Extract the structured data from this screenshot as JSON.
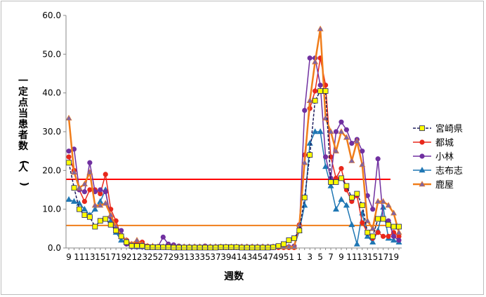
{
  "chart_data": {
    "type": "line",
    "xlabel": "週数",
    "ylabel": "一定点当患者数(人)",
    "ylim": [
      0,
      60
    ],
    "yticks": [
      "0.0",
      "10.0",
      "20.0",
      "30.0",
      "40.0",
      "50.0",
      "60.0"
    ],
    "x": [
      "9",
      "10",
      "11",
      "12",
      "13",
      "14",
      "15",
      "16",
      "17",
      "18",
      "19",
      "20",
      "21",
      "22",
      "23",
      "24",
      "25",
      "26",
      "27",
      "28",
      "29",
      "30",
      "31",
      "32",
      "33",
      "34",
      "35",
      "36",
      "37",
      "38",
      "39",
      "40",
      "41",
      "42",
      "43",
      "44",
      "45",
      "46",
      "47",
      "48",
      "49",
      "50",
      "51",
      "52",
      "1",
      "2",
      "3",
      "4",
      "5",
      "6",
      "7",
      "8",
      "9",
      "10",
      "11",
      "12",
      "13",
      "14",
      "15",
      "16",
      "17",
      "18",
      "19",
      "20"
    ],
    "x_tick_labels": [
      "9",
      "11",
      "13",
      "15",
      "17",
      "19",
      "21",
      "23",
      "25",
      "27",
      "29",
      "31",
      "33",
      "35",
      "37",
      "39",
      "41",
      "43",
      "45",
      "47",
      "49",
      "51",
      "1",
      "3",
      "5",
      "7",
      "9",
      "11",
      "13",
      "15",
      "17",
      "19"
    ],
    "series": [
      {
        "name": "宮崎県",
        "color": "#1f1f5f",
        "marker_fill": "#ffff00",
        "marker": "square",
        "dashed": true,
        "values": [
          22,
          15.5,
          10,
          8.5,
          8,
          5.5,
          7,
          7.5,
          6,
          4.5,
          3,
          1.5,
          0.5,
          0.5,
          0.5,
          0.2,
          0.2,
          0.2,
          0.2,
          0.2,
          0.1,
          0.1,
          0.1,
          0.1,
          0.1,
          0.1,
          0.1,
          0.1,
          0.1,
          0.2,
          0.2,
          0.2,
          0.2,
          0.1,
          0.1,
          0.1,
          0.1,
          0.1,
          0.1,
          0.2,
          0.5,
          1,
          2,
          2.5,
          4.5,
          13,
          24,
          38,
          40.5,
          40.5,
          17,
          17,
          18,
          16,
          13,
          14,
          11,
          4,
          3,
          7.5,
          7.5,
          6,
          5.5,
          5.5
        ]
      },
      {
        "name": "都城",
        "color": "#e8281c",
        "marker_fill": "#e8281c",
        "marker": "circle",
        "dashed": false,
        "values": [
          23.5,
          20,
          15,
          12,
          15,
          15,
          14,
          19,
          10,
          7,
          3,
          2,
          1,
          1.5,
          1.5,
          0.5,
          0.2,
          0.2,
          0.2,
          0.2,
          0.1,
          0.1,
          0.1,
          0.1,
          0.1,
          0.1,
          0.1,
          0.1,
          0.1,
          0.1,
          0.1,
          0.1,
          0.1,
          0.1,
          0.1,
          0.1,
          0.1,
          0.1,
          0.1,
          0.1,
          0.1,
          0.1,
          0.1,
          0.1,
          6,
          24,
          36,
          40.5,
          49,
          42,
          23.5,
          18,
          20.5,
          15,
          12,
          13.5,
          6.5,
          4,
          2.5,
          4,
          3,
          3,
          4,
          3
        ]
      },
      {
        "name": "小林",
        "color": "#7030a0",
        "marker_fill": "#7030a0",
        "marker": "circle",
        "dashed": false,
        "values": [
          25,
          25.5,
          15,
          14.5,
          22,
          14.5,
          15,
          14.5,
          8,
          5,
          4.5,
          1,
          0.3,
          0.3,
          0.3,
          0.3,
          0.3,
          0.3,
          2.8,
          1,
          0.8,
          0.5,
          0.3,
          0.3,
          0.3,
          0.3,
          0.5,
          0.3,
          0.3,
          0.3,
          0.3,
          0.3,
          0.3,
          0.3,
          0.3,
          0.3,
          0.3,
          0.3,
          0.3,
          0.3,
          0.3,
          0.3,
          0.3,
          0.5,
          5,
          35.5,
          49,
          49,
          42,
          23.5,
          18,
          30,
          32.5,
          30.5,
          27,
          28,
          25,
          13.5,
          10,
          23,
          7.5,
          7,
          3,
          2
        ]
      },
      {
        "name": "志布志",
        "color": "#1f77b4",
        "marker_fill": "#1f77b4",
        "marker": "triangle",
        "dashed": false,
        "values": [
          12.5,
          12,
          11.5,
          10,
          8.5,
          10,
          12,
          15,
          7,
          4,
          2,
          1.5,
          0.5,
          0.3,
          0.3,
          0.3,
          0.3,
          0.3,
          0.3,
          0.3,
          0.3,
          0.3,
          0.3,
          0.3,
          0.3,
          0.3,
          0.3,
          0.3,
          0.3,
          0.3,
          0.3,
          0.3,
          0.3,
          0.3,
          0.3,
          0.3,
          0.3,
          0.3,
          0.3,
          0.3,
          0.3,
          0.3,
          0.3,
          0.3,
          4.5,
          11,
          27,
          30,
          30,
          21,
          16,
          10,
          12.5,
          11,
          6,
          1,
          9,
          3,
          1.5,
          4.5,
          10.5,
          2.5,
          2,
          1.5
        ]
      },
      {
        "name": "鹿屋",
        "color": "#f07d1a",
        "marker_fill": "#8064a2",
        "marker": "triangle",
        "dashed": false,
        "values": [
          33.5,
          19.5,
          15.5,
          16.5,
          19.5,
          11,
          11,
          11.5,
          8.5,
          5.5,
          3,
          2,
          1,
          2,
          1,
          0.5,
          0.5,
          0.3,
          0.3,
          0.3,
          0.3,
          0.3,
          0.3,
          0.3,
          0.3,
          0.3,
          0.3,
          0.3,
          0.3,
          0.3,
          0.3,
          0.3,
          0.3,
          0.3,
          0.3,
          0.3,
          0.3,
          0.3,
          0.3,
          0.3,
          0.3,
          0.3,
          0.3,
          0.3,
          6,
          22,
          38,
          48,
          56.5,
          33.5,
          30,
          25,
          30,
          28.5,
          22.5,
          27.5,
          21.5,
          7,
          5,
          12,
          12,
          11,
          9,
          4
        ]
      }
    ],
    "reference_lines": [
      {
        "value": 17.7,
        "color": "#ff0000"
      },
      {
        "value": 5.8,
        "color": "#f07d1a"
      }
    ],
    "grid": false,
    "legend_position": "right"
  }
}
